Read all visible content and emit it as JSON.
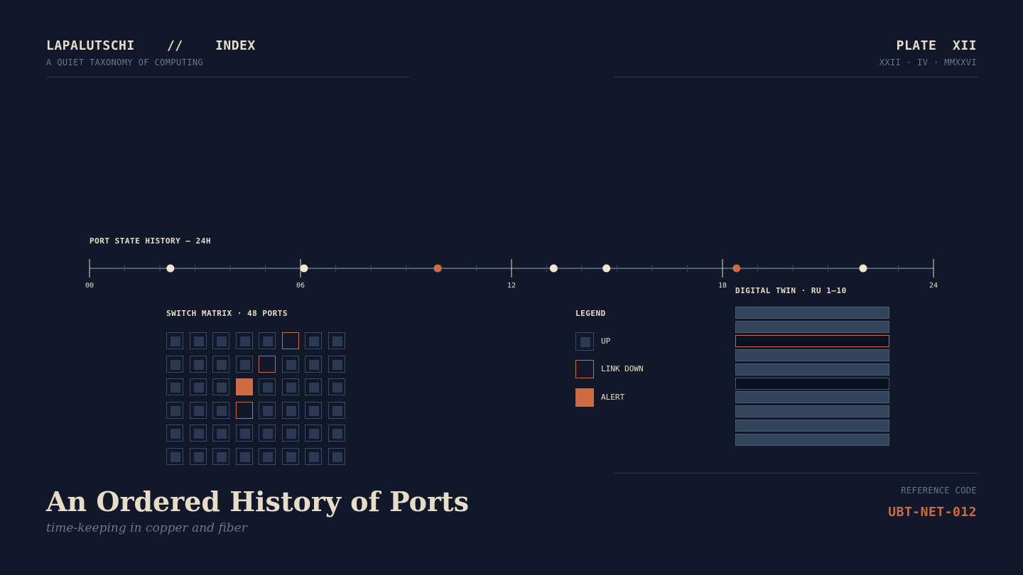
{
  "header": {
    "title": "LAPALUTSCHI    //    INDEX",
    "subtitle": "A QUIET TAXONOMY OF COMPUTING",
    "plate": "PLATE  XII",
    "date": "XXII · IV · MMXXVI"
  },
  "timeline": {
    "label": "PORT STATE HISTORY — 24H",
    "ticks": [
      "00",
      "06",
      "12",
      "18",
      "24"
    ],
    "events": [
      {
        "hour": 2.3,
        "state": "up"
      },
      {
        "hour": 6.1,
        "state": "up"
      },
      {
        "hour": 9.9,
        "state": "alert"
      },
      {
        "hour": 13.2,
        "state": "up"
      },
      {
        "hour": 14.7,
        "state": "up"
      },
      {
        "hour": 18.4,
        "state": "alert"
      },
      {
        "hour": 22.0,
        "state": "up"
      }
    ]
  },
  "matrix": {
    "label": "SWITCH MATRIX · 48 PORTS",
    "rows": [
      [
        "up",
        "up",
        "up",
        "up",
        "up",
        "down",
        "up",
        "up"
      ],
      [
        "up",
        "up",
        "up",
        "up",
        "down",
        "up",
        "up",
        "up"
      ],
      [
        "up",
        "up",
        "up",
        "alert",
        "up",
        "up",
        "up",
        "up"
      ],
      [
        "up",
        "up",
        "up",
        "down",
        "up",
        "up",
        "up",
        "up"
      ],
      [
        "up",
        "up",
        "up",
        "up",
        "up",
        "up",
        "up",
        "up"
      ],
      [
        "up",
        "up",
        "up",
        "up",
        "up",
        "up",
        "up",
        "up"
      ]
    ]
  },
  "legend": {
    "label": "LEGEND",
    "items": [
      {
        "state": "up",
        "label": "UP"
      },
      {
        "state": "down",
        "label": "LINK DOWN"
      },
      {
        "state": "alert",
        "label": "ALERT"
      }
    ]
  },
  "twin": {
    "label": "DIGITAL TWIN · RU 1–10",
    "units": [
      "filled",
      "filled",
      "flag",
      "filled",
      "filled",
      "empty",
      "filled",
      "filled",
      "filled",
      "filled"
    ]
  },
  "footer": {
    "title": "An Ordered History of Ports",
    "subtitle": "time-keeping in copper and fiber",
    "ref_label": "REFERENCE CODE",
    "ref_code": "UBT-NET-012"
  },
  "colors": {
    "background": "#10182a",
    "ink": "#e8dcc6",
    "muted": "#6b778a",
    "accent": "#cf6a43",
    "port_fill": "#2a3a54"
  }
}
